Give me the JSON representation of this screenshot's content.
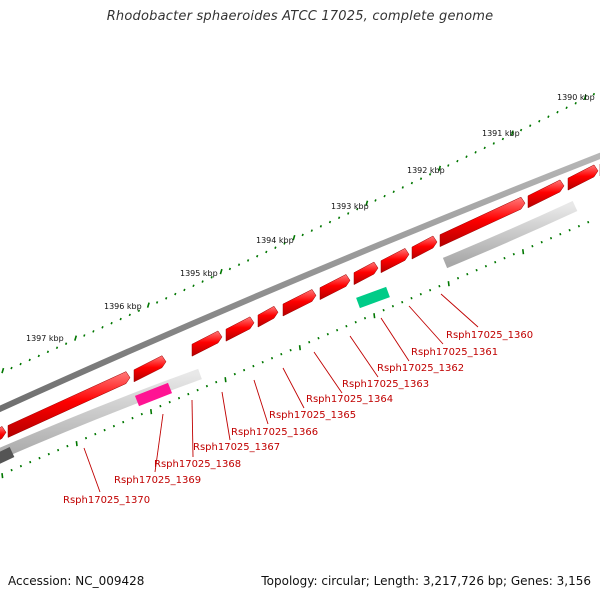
{
  "title": "Rhodobacter sphaeroides ATCC 17025, complete genome",
  "footer": {
    "accession": "Accession: NC_009428",
    "summary": "Topology: circular; Length: 3,217,726 bp; Genes: 3,156"
  },
  "scale_labels": [
    "1390 kbp",
    "1391 kbp",
    "1392 kbp",
    "1393 kbp",
    "1394 kbp",
    "1395 kbp",
    "1396 kbp",
    "1397 kbp"
  ],
  "gene_labels": [
    "Rsph17025_1360",
    "Rsph17025_1361",
    "Rsph17025_1362",
    "Rsph17025_1363",
    "Rsph17025_1364",
    "Rsph17025_1365",
    "Rsph17025_1366",
    "Rsph17025_1367",
    "Rsph17025_1368",
    "Rsph17025_1369",
    "Rsph17025_1370"
  ],
  "colors": {
    "backbone": "#888888",
    "gene_red": "#ff0000",
    "gene_gray": "#c8c8c8",
    "gene_magenta": "#ff1493",
    "gene_green": "#00cc88",
    "gene_dark": "#555555",
    "ticks": "#007700",
    "labels": "#c00000"
  }
}
